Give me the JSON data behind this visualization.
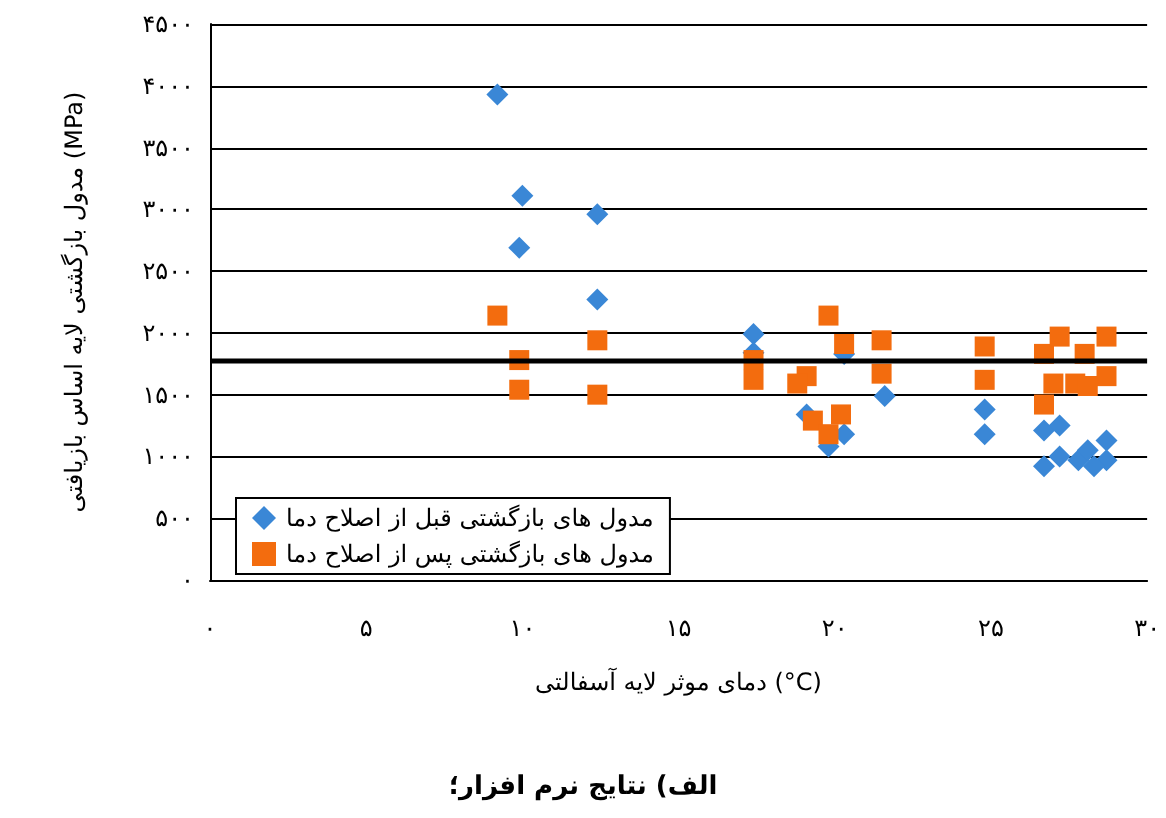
{
  "chart_data": {
    "type": "scatter",
    "title": "الف) نتایج نرم افزار؛",
    "xlabel": "دمای موثر لایه آسفالتی (°C)",
    "ylabel": "مدول بازگشتی لایه اساس بازیافتی (MPa)",
    "xlim": [
      0,
      30
    ],
    "xticks": [
      {
        "value": 0,
        "label": "۰"
      },
      {
        "value": 5,
        "label": "۵"
      },
      {
        "value": 10,
        "label": "۱۰"
      },
      {
        "value": 15,
        "label": "۱۵"
      },
      {
        "value": 20,
        "label": "۲۰"
      },
      {
        "value": 25,
        "label": "۲۵"
      },
      {
        "value": 30,
        "label": "۳۰"
      }
    ],
    "ylim": [
      0,
      4500
    ],
    "yticks": [
      {
        "value": 0,
        "label": "۰"
      },
      {
        "value": 500,
        "label": "۵۰۰"
      },
      {
        "value": 1000,
        "label": "۱۰۰۰"
      },
      {
        "value": 1500,
        "label": "۱۵۰۰"
      },
      {
        "value": 2000,
        "label": "۲۰۰۰"
      },
      {
        "value": 2500,
        "label": "۲۵۰۰"
      },
      {
        "value": 3000,
        "label": "۳۰۰۰"
      },
      {
        "value": 3500,
        "label": "۳۵۰۰"
      },
      {
        "value": 4000,
        "label": "۴۰۰۰"
      },
      {
        "value": 4500,
        "label": "۴۵۰۰"
      }
    ],
    "grid": "y",
    "legend": "bottom left",
    "ref_lines": [
      {
        "axis": "y",
        "value": 1780
      }
    ],
    "series": [
      {
        "name": "مدول های بازگشتی قبل از اصلاح دما",
        "color": "#3a87d6",
        "marker": "diamond",
        "x": [
          9.2,
          10.0,
          9.9,
          12.4,
          12.4,
          17.4,
          17.4,
          20.3,
          19.8,
          20.3,
          21.6,
          19.1,
          24.8,
          24.8,
          26.7,
          27.2,
          26.7,
          27.2,
          27.8,
          28.1,
          28.7,
          28.7,
          28.3
        ],
        "values": [
          3930,
          3110,
          2690,
          2960,
          2270,
          1990,
          1840,
          1830,
          1080,
          1180,
          1490,
          1340,
          1380,
          1180,
          1210,
          1250,
          920,
          1000,
          970,
          1050,
          1130,
          970,
          920
        ]
      },
      {
        "name": "مدول های بازگشتی پس از اصلاح دما",
        "color": "#f36c0e",
        "marker": "square",
        "x": [
          9.2,
          9.9,
          9.9,
          12.4,
          12.4,
          17.4,
          17.4,
          19.8,
          20.3,
          19.1,
          18.8,
          19.3,
          19.8,
          20.2,
          21.5,
          21.5,
          24.8,
          24.8,
          26.7,
          27.2,
          26.7,
          27.0,
          27.7,
          28.0,
          28.1,
          28.7,
          28.7
        ],
        "values": [
          2140,
          1780,
          1540,
          1940,
          1500,
          1780,
          1620,
          2140,
          1910,
          1650,
          1590,
          1290,
          1180,
          1340,
          1940,
          1670,
          1890,
          1620,
          1830,
          1970,
          1420,
          1590,
          1590,
          1830,
          1570,
          1970,
          1650
        ]
      }
    ]
  }
}
